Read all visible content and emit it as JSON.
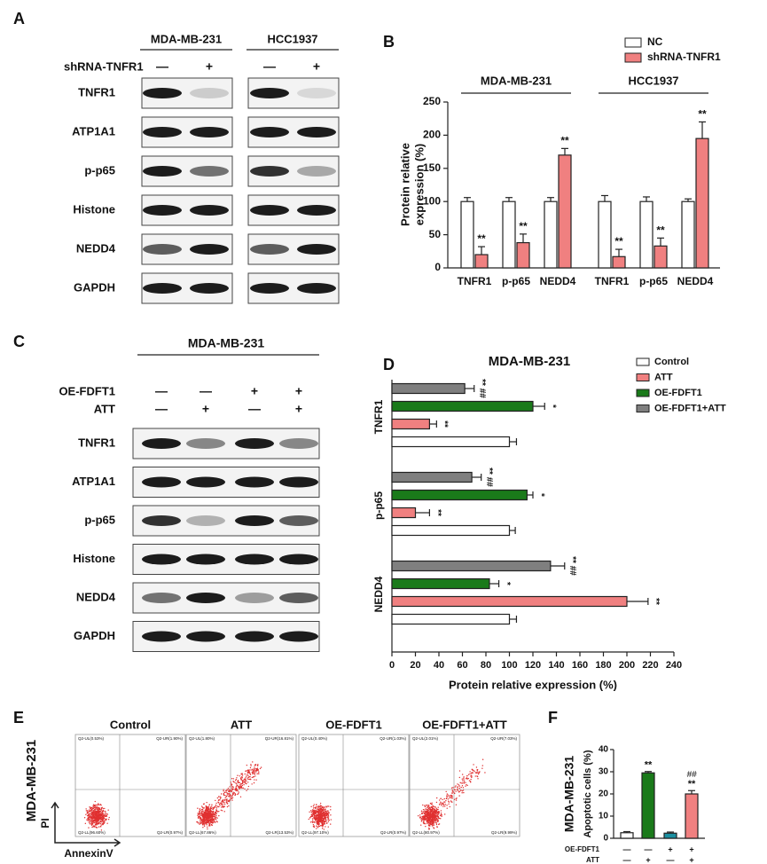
{
  "figure": {
    "panel_labels": [
      "A",
      "B",
      "C",
      "D",
      "E",
      "F"
    ],
    "blot_a": {
      "groups": [
        "MDA-MB-231",
        "HCC1937"
      ],
      "treatment": "shRNA-TNFR1",
      "lanes": [
        "—",
        "+",
        "—",
        "+"
      ],
      "proteins": [
        "TNFR1",
        "ATP1A1",
        "p-p65",
        "Histone",
        "NEDD4",
        "GAPDH"
      ]
    },
    "blot_c": {
      "title": "MDA-MB-231",
      "treatments": [
        {
          "name": "OE-FDFT1",
          "lanes": [
            "—",
            "—",
            "+",
            "+"
          ]
        },
        {
          "name": "ATT",
          "lanes": [
            "—",
            "+",
            "—",
            "+"
          ]
        }
      ],
      "proteins": [
        "TNFR1",
        "ATP1A1",
        "p-p65",
        "Histone",
        "NEDD4",
        "GAPDH"
      ]
    },
    "flow_e": {
      "row_label": "MDA-MB-231",
      "y_axis": "PI",
      "x_axis": "AnnexinV",
      "plots": [
        {
          "title": "Control",
          "quadrants": [
            "Q2-UL(0.53%)",
            "Q2-UR(1.90%)",
            "Q2-LL(96.60%)",
            "Q2-LR(0.97%)"
          ]
        },
        {
          "title": "ATT",
          "quadrants": [
            "Q2-UL(1.80%)",
            "Q2-UR(16.81%)",
            "Q2-LL(67.86%)",
            "Q2-LR(13.53%)"
          ]
        },
        {
          "title": "OE-FDFT1",
          "quadrants": [
            "Q2-UL(0.40%)",
            "Q2-UR(1.03%)",
            "Q2-LL(97.10%)",
            "Q2-LR(0.97%)"
          ]
        },
        {
          "title": "OE-FDFT1+ATT",
          "quadrants": [
            "Q2-UL(2.01%)",
            "Q2-UR(7.03%)",
            "Q2-LL(80.97%)",
            "Q2-LR(9.99%)"
          ]
        }
      ]
    }
  },
  "chart_data": [
    {
      "type": "bar",
      "legend": "top-right",
      "categories": [
        "TNFR1",
        "p-p65",
        "NEDD4",
        "TNFR1",
        "p-p65",
        "NEDD4"
      ],
      "groups": [
        "MDA-MB-231",
        "HCC1937"
      ],
      "ylabel": [
        "Protein relative",
        "expression (%)"
      ],
      "ylim": [
        0,
        250
      ],
      "yticks": [
        0,
        50,
        100,
        150,
        200,
        250
      ],
      "series": [
        {
          "name": "NC",
          "color": "#ffffff",
          "values": [
            100,
            100,
            100,
            100,
            100,
            100
          ],
          "errors": [
            6,
            6,
            6,
            9,
            7,
            4
          ]
        },
        {
          "name": "shRNA-TNFR1",
          "color": "#f08080",
          "values": [
            20,
            38,
            170,
            17,
            33,
            195
          ],
          "errors": [
            12,
            13,
            10,
            11,
            12,
            25
          ],
          "labels": [
            "**",
            "**",
            "**",
            "**",
            "**",
            "**"
          ]
        }
      ]
    },
    {
      "type": "barh",
      "title": "MDA-MB-231",
      "legend": "top-right",
      "categories": [
        "TNFR1",
        "p-p65",
        "NEDD4"
      ],
      "xlabel": "Protein relative expression (%)",
      "xlim": [
        0,
        240
      ],
      "xticks": [
        0,
        20,
        40,
        60,
        80,
        100,
        120,
        140,
        160,
        180,
        200,
        220,
        240
      ],
      "series": [
        {
          "name": "Control",
          "color": "#ffffff",
          "values": [
            100,
            100,
            100
          ],
          "errors": [
            6,
            5,
            6
          ]
        },
        {
          "name": "ATT",
          "color": "#f08080",
          "values": [
            32,
            20,
            200
          ],
          "errors": [
            6,
            12,
            18
          ],
          "labels": [
            "**",
            "**",
            "**"
          ]
        },
        {
          "name": "OE-FDFT1",
          "color": "#1a7a1a",
          "values": [
            120,
            115,
            83
          ],
          "errors": [
            10,
            5,
            8
          ],
          "labels": [
            "*",
            "*",
            "*"
          ]
        },
        {
          "name": "OE-FDFT1+ATT",
          "color": "#7f7f7f",
          "values": [
            62,
            68,
            135
          ],
          "errors": [
            8,
            8,
            12
          ],
          "labels": [
            "** ##",
            "** ##",
            "** ##"
          ]
        }
      ]
    },
    {
      "type": "bar",
      "side_label": "MDA-MB-231",
      "ylabel": "Apoptotic cells (%)",
      "ylim": [
        0,
        40
      ],
      "yticks": [
        0,
        10,
        20,
        30,
        40
      ],
      "values": [
        2.5,
        29.5,
        2.3,
        20
      ],
      "errors": [
        0.5,
        0.6,
        0.5,
        1.5
      ],
      "colors": [
        "#ffffff",
        "#1a7a1a",
        "#1a8fa0",
        "#f08080"
      ],
      "labels": [
        null,
        "**",
        null,
        "**"
      ],
      "labels2": [
        null,
        null,
        null,
        "##"
      ],
      "conditions": [
        {
          "name": "OE-FDFT1",
          "lanes": [
            "—",
            "—",
            "+",
            "+"
          ]
        },
        {
          "name": "ATT",
          "lanes": [
            "—",
            "+",
            "—",
            "+"
          ]
        }
      ]
    }
  ]
}
